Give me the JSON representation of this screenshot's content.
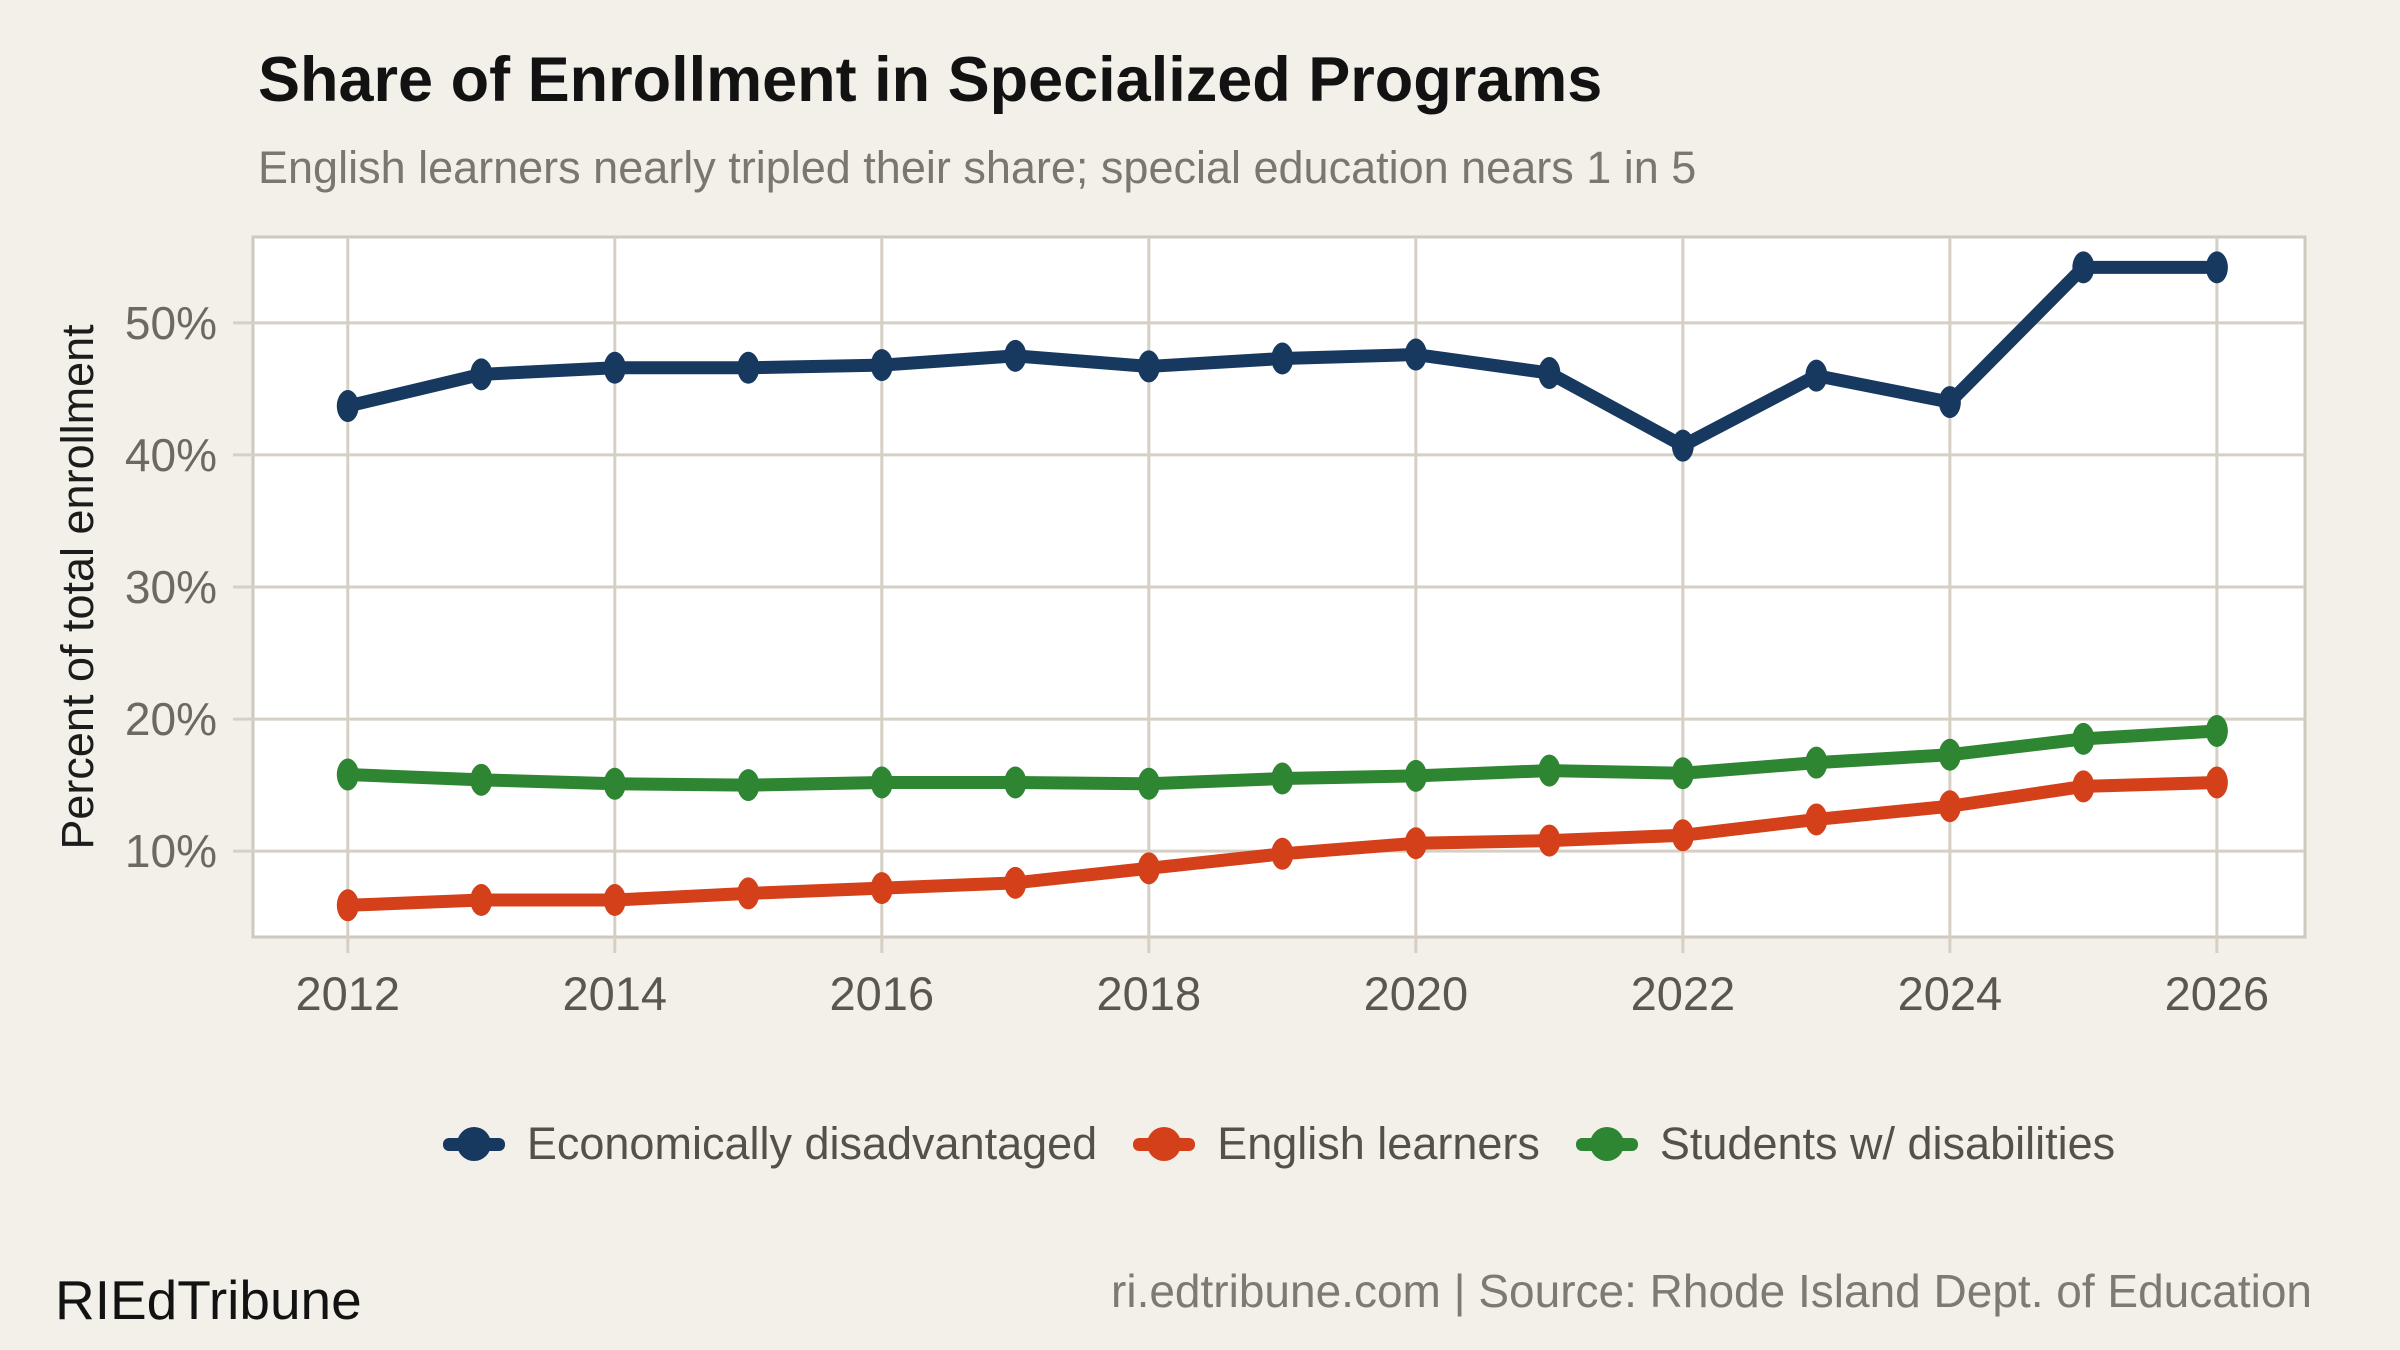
{
  "title": "Share of Enrollment in Specialized Programs",
  "subtitle": "English learners nearly tripled their share; special education nears 1 in 5",
  "footer": {
    "brand": "RIEdTribune",
    "source": "ri.edtribune.com | Source: Rhode Island Dept. of Education"
  },
  "colors": {
    "background": "#f3f0e9",
    "panel": "#ffffff",
    "grid": "#d5cfc4",
    "panel_border": "#cfc9bd",
    "y_tick_label": "#6e6960",
    "x_tick_label": "#5b564e",
    "subtitle_text": "#7b766e",
    "legend_text": "#55514a",
    "source_text": "#7e7971"
  },
  "chart_data": {
    "type": "line",
    "title": "Share of Enrollment in Specialized Programs",
    "subtitle": "English learners nearly tripled their share; special education nears 1 in 5",
    "xlabel": "",
    "ylabel": "Percent of total enrollment",
    "x": [
      2012,
      2013,
      2014,
      2015,
      2016,
      2017,
      2018,
      2019,
      2020,
      2021,
      2022,
      2023,
      2024,
      2025,
      2026
    ],
    "series": [
      {
        "name": "Economically disadvantaged",
        "color": "#17395f",
        "values": [
          43.7,
          46.1,
          46.6,
          46.6,
          46.8,
          47.5,
          46.7,
          47.3,
          47.6,
          46.2,
          40.7,
          46.0,
          44.0,
          54.2,
          54.2
        ]
      },
      {
        "name": "English learners",
        "color": "#d4401a",
        "values": [
          5.9,
          6.3,
          6.3,
          6.8,
          7.2,
          7.6,
          8.7,
          9.8,
          10.6,
          10.8,
          11.2,
          12.4,
          13.4,
          14.9,
          15.2
        ]
      },
      {
        "name": "Students w/ disabilities",
        "color": "#2e8633",
        "values": [
          15.8,
          15.4,
          15.1,
          15.0,
          15.2,
          15.2,
          15.1,
          15.5,
          15.7,
          16.1,
          15.9,
          16.7,
          17.3,
          18.5,
          19.1
        ]
      }
    ],
    "x_ticks": [
      2012,
      2014,
      2016,
      2018,
      2020,
      2022,
      2024,
      2026
    ],
    "x_tick_labels": [
      "2012",
      "2014",
      "2016",
      "2018",
      "2020",
      "2022",
      "2024",
      "2026"
    ],
    "y_ticks": [
      10,
      20,
      30,
      40,
      50
    ],
    "y_tick_labels": [
      "10%",
      "20%",
      "30%",
      "40%",
      "50%"
    ],
    "xlim": [
      2011.29,
      2026.66
    ],
    "ylim": [
      3.5,
      56.5
    ],
    "grid": true,
    "legend_position": "bottom"
  },
  "legend": {
    "items": [
      {
        "label": "Economically disadvantaged",
        "color": "#17395f"
      },
      {
        "label": "English learners",
        "color": "#d4401a"
      },
      {
        "label": "Students w/ disabilities",
        "color": "#2e8633"
      }
    ]
  }
}
